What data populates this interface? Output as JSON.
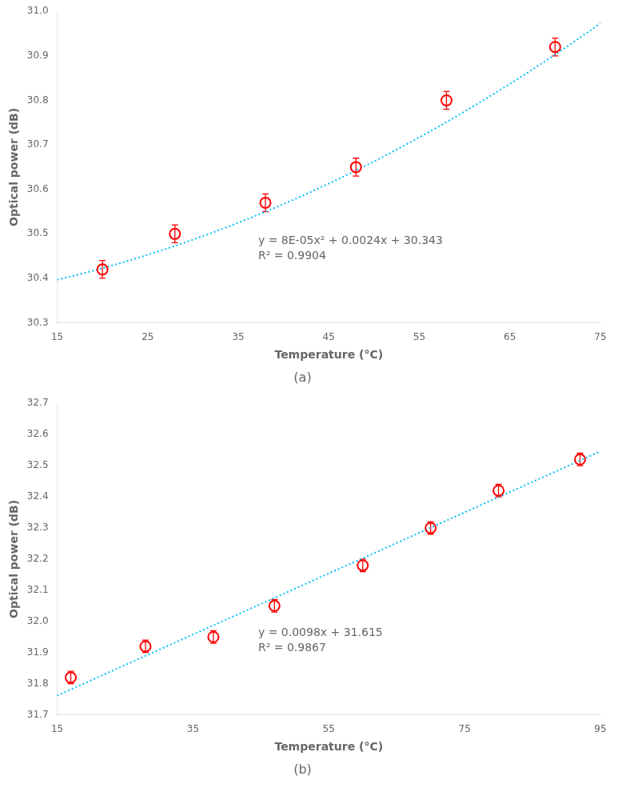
{
  "chart_data": [
    {
      "type": "scatter",
      "title": "(a)",
      "x_label": "Temperature (°C)",
      "y_label": "Optical power (dB)",
      "xlim": [
        15,
        75
      ],
      "ylim": [
        30.3,
        31.0
      ],
      "xticks": [
        15,
        25,
        35,
        45,
        55,
        65,
        75
      ],
      "yticks": [
        30.3,
        30.4,
        30.5,
        30.6,
        30.7,
        30.8,
        30.9,
        {
          "value": 31.0,
          "label": "31.0"
        }
      ],
      "grid": false,
      "legend": false,
      "annotation": [
        "y = 8E-05x² + 0.0024x + 30.343",
        "R² = 0.9904"
      ],
      "series": [
        {
          "type": "line",
          "color": "#00BFFF",
          "line_style": "dotted",
          "coeffs": [
            8e-05,
            0.0024,
            30.343
          ]
        },
        {
          "type": "scatter",
          "color": "#FF0000",
          "marker": "open_circle",
          "x": [
            20,
            28,
            38,
            48,
            58,
            70
          ],
          "values": [
            30.42,
            30.5,
            30.57,
            30.65,
            30.8,
            30.92
          ],
          "y_err": 0.02
        }
      ]
    },
    {
      "type": "scatter",
      "title": "(b)",
      "x_label": "Temperature (°C)",
      "y_label": "Optical power (dB)",
      "xlim": [
        15,
        95
      ],
      "ylim": [
        31.7,
        32.7
      ],
      "xticks": [
        15,
        35,
        55,
        75,
        95
      ],
      "yticks": [
        31.7,
        31.8,
        31.9,
        {
          "value": 32.0,
          "label": "32.0"
        },
        32.1,
        32.2,
        32.3,
        32.4,
        32.5,
        32.6,
        32.7
      ],
      "grid": false,
      "legend": false,
      "annotation": [
        "y = 0.0098x + 31.615",
        "R² = 0.9867"
      ],
      "series": [
        {
          "type": "line",
          "color": "#00BFFF",
          "line_style": "dotted",
          "coeffs": [
            0.0098,
            31.615
          ]
        },
        {
          "type": "scatter",
          "color": "#FF0000",
          "marker": "open_circle",
          "x": [
            17,
            28,
            38,
            47,
            60,
            70,
            80,
            92
          ],
          "values": [
            31.82,
            31.92,
            31.95,
            32.05,
            32.18,
            32.3,
            32.42,
            32.52
          ],
          "y_err": 0.02
        }
      ]
    }
  ]
}
